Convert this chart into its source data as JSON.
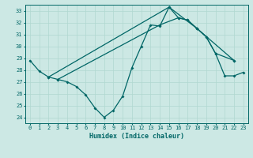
{
  "xlabel": "Humidex (Indice chaleur)",
  "bg_color": "#cce8e4",
  "line_color": "#006666",
  "xlim": [
    -0.5,
    23.5
  ],
  "ylim": [
    23.5,
    33.5
  ],
  "yticks": [
    24,
    25,
    26,
    27,
    28,
    29,
    30,
    31,
    32,
    33
  ],
  "xticks": [
    0,
    1,
    2,
    3,
    4,
    5,
    6,
    7,
    8,
    9,
    10,
    11,
    12,
    13,
    14,
    15,
    16,
    17,
    18,
    19,
    20,
    21,
    22,
    23
  ],
  "series": [
    {
      "x": [
        0,
        1,
        2,
        3,
        4,
        5,
        6,
        7,
        8,
        9,
        10,
        11,
        12,
        13,
        14,
        15,
        16,
        17,
        18,
        19,
        20,
        22
      ],
      "y": [
        28.8,
        27.9,
        27.4,
        27.2,
        27.0,
        26.6,
        25.9,
        24.8,
        24.0,
        24.6,
        25.8,
        28.2,
        30.0,
        31.8,
        31.7,
        33.3,
        32.4,
        32.2,
        31.5,
        30.8,
        29.4,
        28.8
      ]
    },
    {
      "x": [
        2,
        15,
        18,
        22
      ],
      "y": [
        27.4,
        33.3,
        31.5,
        28.8
      ]
    },
    {
      "x": [
        3,
        14,
        16,
        17,
        18,
        19,
        20,
        21,
        22,
        23
      ],
      "y": [
        27.2,
        31.8,
        32.4,
        32.2,
        31.5,
        30.8,
        29.4,
        27.5,
        27.5,
        27.8
      ]
    }
  ]
}
